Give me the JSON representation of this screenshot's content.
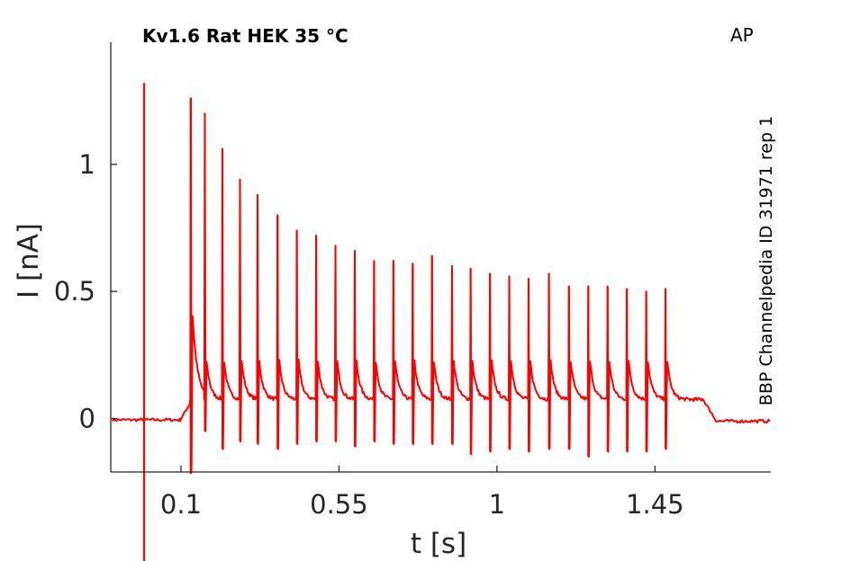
{
  "chart_data": {
    "type": "line",
    "title": "Kv1.6  Rat  HEK  35 °C",
    "protocol_label": "AP",
    "side_label": "BBP Channelpedia ID 31971 rep 1",
    "xlabel": "t [s]",
    "ylabel": "I [nA]",
    "xlim": [
      -0.1,
      1.78
    ],
    "ylim": [
      -0.21,
      1.48
    ],
    "x_ticks": [
      0.1,
      0.55,
      1,
      1.45
    ],
    "x_tick_labels": [
      "0.1",
      "0.55",
      "1",
      "1.45"
    ],
    "y_ticks": [
      0,
      0.5,
      1
    ],
    "y_tick_labels": [
      "0",
      "0.5",
      "1"
    ],
    "grid": false,
    "line_color": "#ff0000",
    "series": [
      {
        "pre_baseline": -0.005,
        "post_baseline": -0.01,
        "settle_level": 0.06,
        "artifact": {
          "x": -0.005,
          "top": 1.32
        },
        "first_spike": {
          "x": 0.128,
          "bottom": -0.21
        },
        "pulse_end_x": 1.585,
        "spikes": [
          {
            "x": 0.128,
            "peak": 1.26,
            "trough": -0.21
          },
          {
            "x": 0.168,
            "peak": 1.2,
            "trough": -0.05
          },
          {
            "x": 0.218,
            "peak": 1.06,
            "trough": -0.12
          },
          {
            "x": 0.268,
            "peak": 0.94,
            "trough": -0.09
          },
          {
            "x": 0.318,
            "peak": 0.88,
            "trough": -0.1
          },
          {
            "x": 0.375,
            "peak": 0.8,
            "trough": -0.12
          },
          {
            "x": 0.43,
            "peak": 0.74,
            "trough": -0.1
          },
          {
            "x": 0.485,
            "peak": 0.72,
            "trough": -0.09
          },
          {
            "x": 0.54,
            "peak": 0.68,
            "trough": -0.09
          },
          {
            "x": 0.595,
            "peak": 0.66,
            "trough": -0.11
          },
          {
            "x": 0.65,
            "peak": 0.62,
            "trough": -0.09
          },
          {
            "x": 0.705,
            "peak": 0.62,
            "trough": -0.1
          },
          {
            "x": 0.76,
            "peak": 0.61,
            "trough": -0.1
          },
          {
            "x": 0.815,
            "peak": 0.64,
            "trough": -0.1
          },
          {
            "x": 0.872,
            "peak": 0.6,
            "trough": -0.1
          },
          {
            "x": 0.925,
            "peak": 0.59,
            "trough": -0.14
          },
          {
            "x": 0.98,
            "peak": 0.57,
            "trough": -0.13
          },
          {
            "x": 1.035,
            "peak": 0.56,
            "trough": -0.12
          },
          {
            "x": 1.09,
            "peak": 0.55,
            "trough": -0.13
          },
          {
            "x": 1.148,
            "peak": 0.57,
            "trough": -0.12
          },
          {
            "x": 1.205,
            "peak": 0.52,
            "trough": -0.12
          },
          {
            "x": 1.26,
            "peak": 0.52,
            "trough": -0.15
          },
          {
            "x": 1.315,
            "peak": 0.52,
            "trough": -0.13
          },
          {
            "x": 1.37,
            "peak": 0.51,
            "trough": -0.13
          },
          {
            "x": 1.425,
            "peak": 0.5,
            "trough": -0.13
          },
          {
            "x": 1.48,
            "peak": 0.51,
            "trough": -0.12
          }
        ],
        "end_x": 1.78
      }
    ]
  }
}
